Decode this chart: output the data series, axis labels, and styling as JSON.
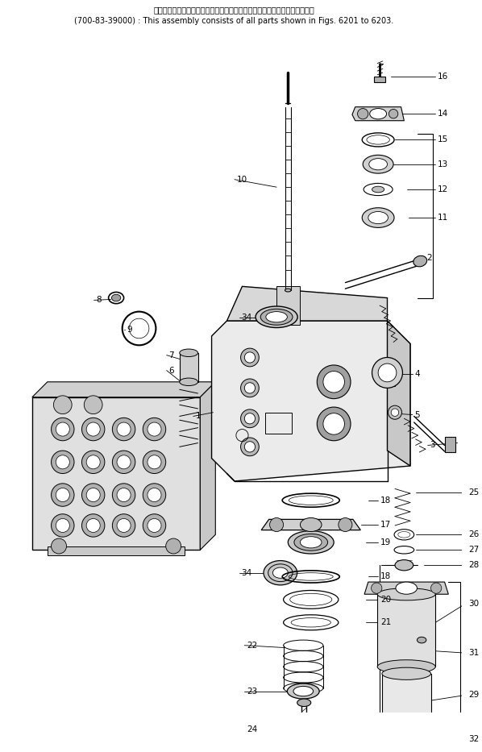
{
  "title_line1": "このアセンブリの構成部品は第６２０１図から第６２０３図まで含みます．",
  "title_line2": "(700-83-39000) : This assembly consists of all parts shown in Figs. 6201 to 6203.",
  "bg_color": "#ffffff",
  "line_color": "#000000"
}
